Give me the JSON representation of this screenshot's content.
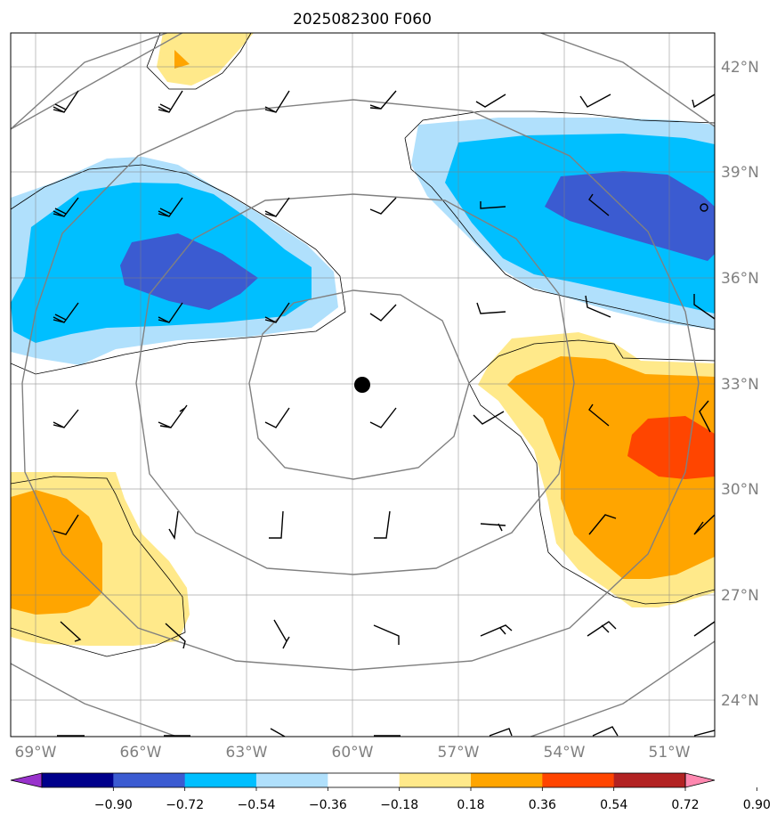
{
  "title": "2025082300 F060",
  "map": {
    "lon_labels": [
      "69°W",
      "66°W",
      "63°W",
      "60°W",
      "57°W",
      "54°W",
      "51°W"
    ],
    "lat_labels": [
      "42°N",
      "39°N",
      "36°N",
      "33°N",
      "30°N",
      "27°N",
      "24°N"
    ],
    "center_marker": "storm-center",
    "range_rings": 4
  },
  "colorbar": {
    "labels": [
      "−0.90",
      "−0.72",
      "−0.54",
      "−0.36",
      "−0.18",
      "0.18",
      "0.36",
      "0.54",
      "0.72",
      "0.90"
    ],
    "colors": [
      "#9932cc",
      "#00008b",
      "#3b5bd1",
      "#00bfff",
      "#b0e0fc",
      "#ffffff",
      "#ffe98a",
      "#ffa500",
      "#ff4500",
      "#b22222",
      "#ff88b0"
    ]
  },
  "fill_colors": {
    "light_blue": "#b0e0fc",
    "blue": "#00bfff",
    "dark_blue": "#3b5bd1",
    "light_yellow": "#ffe98a",
    "orange": "#ffa500",
    "red_orange": "#ff4500"
  }
}
